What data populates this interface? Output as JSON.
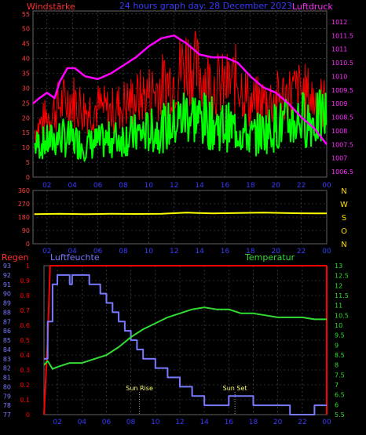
{
  "header": {
    "left_label": "Windstärke",
    "center_label": "24 hours graph day: 28 December 2023",
    "right_label": "Luftdruck"
  },
  "colors": {
    "wind_gust": "#ff0000",
    "wind_avg": "#00ff00",
    "pressure": "#ff00ff",
    "direction": "#ffff00",
    "humidity": "#7a7aff",
    "temperature": "#33dd33",
    "rain": "#ff0000",
    "axis_text_left": "#ff4040",
    "axis_text_right": "#ff30ff",
    "hour_text": "#3a3aff",
    "grid": "#555555"
  },
  "chart_data": [
    {
      "type": "line",
      "id": "wind-pressure",
      "title": "24 hours graph day: 28 December 2023",
      "left_axis": {
        "label": "Windstärke",
        "ticks": [
          0,
          5,
          10,
          15,
          20,
          25,
          30,
          35,
          40,
          45,
          50,
          55
        ],
        "range": [
          0,
          56
        ]
      },
      "right_axis": {
        "label": "Luftdruck",
        "ticks": [
          "1006.5",
          "1007",
          "1007.5",
          "1008",
          "1008.5",
          "1009",
          "1009.5",
          "1010",
          "1010.5",
          "1011",
          "1011.5",
          "1012"
        ],
        "range": [
          1006.3,
          1012.4
        ]
      },
      "x_ticks": [
        "02",
        "04",
        "06",
        "08",
        "10",
        "12",
        "14",
        "16",
        "18",
        "20",
        "22",
        "00"
      ],
      "x_range": [
        0.9,
        24
      ],
      "grid": true,
      "series": [
        {
          "name": "Windstärke",
          "kind": "gust",
          "x": [
            1.0,
            2.0,
            3.0,
            4.0,
            5.0,
            6.0,
            7.0,
            8.0,
            9.0,
            10.0,
            11.0,
            12.0,
            13.0,
            14.0,
            15.0,
            16.0,
            17.0,
            18.0,
            19.0,
            20.0,
            21.0,
            22.0,
            23.0,
            24.0
          ],
          "y": [
            18,
            23,
            28,
            30,
            26,
            27,
            25,
            28,
            30,
            32,
            35,
            38,
            45,
            40,
            36,
            35,
            38,
            28,
            29,
            30,
            32,
            33,
            30,
            28
          ]
        },
        {
          "name": "Windstärke",
          "kind": "average",
          "x": [
            1.0,
            2.0,
            3.0,
            4.0,
            5.0,
            6.0,
            7.0,
            8.0,
            9.0,
            10.0,
            11.0,
            12.0,
            13.0,
            14.0,
            15.0,
            16.0,
            17.0,
            18.0,
            19.0,
            20.0,
            21.0,
            22.0,
            23.0,
            24.0
          ],
          "y": [
            12,
            13,
            15,
            14,
            12,
            13,
            14,
            15,
            16,
            17,
            18,
            20,
            24,
            22,
            20,
            19,
            18,
            15,
            17,
            19,
            20,
            22,
            21,
            23
          ]
        },
        {
          "name": "Luftdruck",
          "kind": "pressure",
          "x": [
            0.9,
            1.4,
            2.0,
            2.6,
            3.0,
            3.6,
            4.2,
            5.0,
            6.0,
            7.0,
            8.0,
            9.0,
            10.0,
            11.0,
            12.0,
            13.0,
            14.0,
            15.0,
            16.0,
            17.0,
            18.0,
            19.0,
            20.0,
            21.0,
            22.0,
            23.0,
            24.0
          ],
          "y": [
            1009.0,
            1009.2,
            1009.4,
            1009.2,
            1009.8,
            1010.3,
            1010.3,
            1010.0,
            1009.9,
            1010.1,
            1010.4,
            1010.7,
            1011.1,
            1011.4,
            1011.5,
            1011.2,
            1010.8,
            1010.7,
            1010.7,
            1010.5,
            1010.0,
            1009.6,
            1009.4,
            1009.0,
            1008.5,
            1008.1,
            1007.5
          ]
        }
      ]
    },
    {
      "type": "line",
      "id": "wind-direction",
      "left_axis": {
        "ticks": [
          0,
          90,
          180,
          270,
          360
        ],
        "range": [
          0,
          360
        ]
      },
      "right_axis": {
        "ticks": [
          "N",
          "W",
          "S",
          "O",
          "N"
        ]
      },
      "x_ticks": [
        "02",
        "04",
        "06",
        "08",
        "10",
        "12",
        "14",
        "16",
        "18",
        "20",
        "22",
        "00"
      ],
      "x_range": [
        0.9,
        24
      ],
      "grid": true,
      "series": [
        {
          "name": "direction",
          "x": [
            1.0,
            3.0,
            5.0,
            7.0,
            9.0,
            11.0,
            13.0,
            15.0,
            17.0,
            19.0,
            21.0,
            23.0,
            24.0
          ],
          "y": [
            200,
            203,
            200,
            202,
            201,
            203,
            210,
            205,
            208,
            210,
            207,
            205,
            205
          ]
        }
      ]
    },
    {
      "type": "line",
      "id": "rain-humidity-temperature",
      "labels": {
        "left": "Regen",
        "middle": "Luftfeuchte",
        "right": "Temperatur"
      },
      "rain_axis": {
        "ticks": [
          "0",
          "0.1",
          "0.2",
          "0.3",
          "0.4",
          "0.5",
          "0.6",
          "0.7",
          "0.8",
          "0.9",
          "1"
        ],
        "range": [
          0,
          1
        ]
      },
      "humidity_axis": {
        "ticks": [
          77,
          78,
          79,
          80,
          81,
          82,
          83,
          84,
          85,
          86,
          87,
          88,
          89,
          90,
          91,
          92,
          93
        ],
        "range": [
          77,
          93
        ]
      },
      "temperature_axis": {
        "ticks": [
          "5.5",
          "6",
          "6.5",
          "7",
          "7.5",
          "8",
          "8.5",
          "9",
          "9.5",
          "10",
          "10.5",
          "11",
          "11.5",
          "12",
          "12.5",
          "13"
        ],
        "range": [
          5.5,
          13
        ]
      },
      "x_ticks": [
        "02",
        "04",
        "06",
        "08",
        "10",
        "12",
        "14",
        "16",
        "18",
        "20",
        "22",
        "00"
      ],
      "x_range": [
        0.9,
        24
      ],
      "annotations": [
        {
          "label": "Sun Rise",
          "x": 8.7
        },
        {
          "label": "Sun Set",
          "x": 16.5
        }
      ],
      "series": [
        {
          "name": "Regen",
          "x": [
            0.9,
            1.2,
            1.4,
            24.0
          ],
          "y": [
            0,
            0.5,
            1,
            1
          ]
        },
        {
          "name": "Luftfeuchte",
          "x": [
            0.9,
            1.2,
            1.6,
            2.0,
            3.0,
            3.2,
            4.0,
            4.6,
            5.0,
            5.5,
            6.0,
            6.5,
            7.0,
            7.5,
            8.0,
            8.5,
            9.0,
            9.5,
            10.0,
            10.5,
            11.0,
            11.5,
            12.0,
            12.5,
            13.0,
            13.5,
            14.0,
            15.0,
            16.0,
            17.0,
            18.0,
            19.0,
            20.0,
            21.0,
            22.0,
            23.0,
            24.0
          ],
          "y": [
            83,
            87,
            91,
            92,
            91,
            92,
            92,
            91,
            91,
            90,
            89,
            88,
            87,
            86,
            85,
            84,
            83,
            83,
            82,
            82,
            81,
            81,
            80,
            80,
            79,
            79,
            78,
            78,
            79,
            79,
            78,
            78,
            78,
            77,
            77,
            78,
            78
          ]
        },
        {
          "name": "Temperatur",
          "x": [
            0.9,
            1.2,
            1.6,
            2.0,
            3.0,
            4.0,
            5.0,
            6.0,
            7.0,
            8.0,
            9.0,
            10.0,
            11.0,
            12.0,
            13.0,
            14.0,
            15.0,
            16.0,
            17.0,
            18.0,
            19.0,
            20.0,
            21.0,
            22.0,
            23.0,
            24.0
          ],
          "y": [
            8.0,
            8.2,
            7.8,
            7.9,
            8.1,
            8.1,
            8.3,
            8.5,
            8.9,
            9.4,
            9.8,
            10.1,
            10.4,
            10.6,
            10.8,
            10.9,
            10.8,
            10.8,
            10.6,
            10.6,
            10.5,
            10.4,
            10.4,
            10.4,
            10.3,
            10.3
          ]
        }
      ]
    }
  ]
}
